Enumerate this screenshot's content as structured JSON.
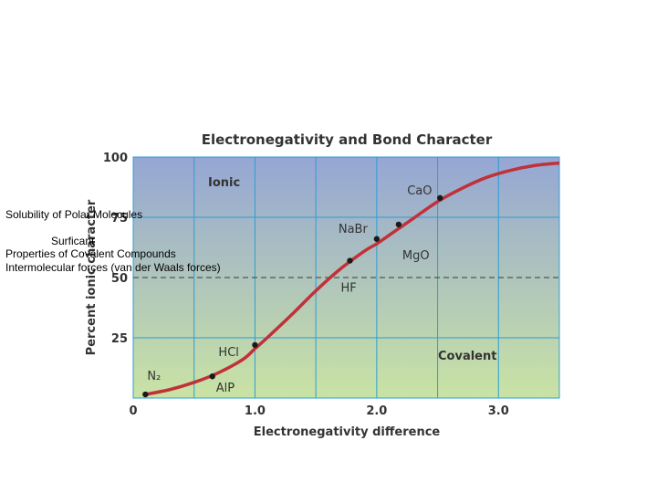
{
  "overlay": {
    "line1": "Solubility of Polar Molecules",
    "line2": "Surficant",
    "line3": "Properties of Covalent Compounds",
    "line4": "Intermolecular forces (van der Waals forces)"
  },
  "chart_data": {
    "type": "line",
    "title": "Electronegativity and Bond Character",
    "xlabel": "Electronegativity difference",
    "ylabel": "Percent ionic character",
    "xlim": [
      0,
      3.5
    ],
    "ylim": [
      0,
      100
    ],
    "x_ticks": [
      {
        "value": 0,
        "label": "0"
      },
      {
        "value": 1.0,
        "label": "1.0"
      },
      {
        "value": 2.0,
        "label": "2.0"
      },
      {
        "value": 3.0,
        "label": "3.0"
      }
    ],
    "y_ticks": [
      {
        "value": 25,
        "label": "25"
      },
      {
        "value": 50,
        "label": "50"
      },
      {
        "value": 75,
        "label": "75"
      },
      {
        "value": 100,
        "label": "100"
      }
    ],
    "region_labels": {
      "ionic": "Ionic",
      "covalent": "Covalent"
    },
    "threshold": 50,
    "grid": true,
    "curve": {
      "x": [
        0.1,
        0.3,
        0.5,
        0.7,
        0.9,
        1.0,
        1.1,
        1.3,
        1.5,
        1.7,
        1.9,
        2.0,
        2.1,
        2.3,
        2.5,
        2.7,
        2.9,
        3.1,
        3.3,
        3.5
      ],
      "y": [
        1.5,
        3.5,
        6.5,
        10.5,
        16.0,
        20.5,
        25.0,
        34.5,
        44.5,
        53.5,
        61.0,
        64.0,
        67.5,
        74.5,
        81.5,
        87.0,
        91.5,
        94.5,
        96.5,
        97.5
      ]
    },
    "points": [
      {
        "label": "N₂",
        "x": 0.1,
        "y": 1.5
      },
      {
        "label": "AlP",
        "x": 0.65,
        "y": 9
      },
      {
        "label": "HCl",
        "x": 1.0,
        "y": 22
      },
      {
        "label": "HF",
        "x": 1.78,
        "y": 57
      },
      {
        "label": "NaBr",
        "x": 2.0,
        "y": 66
      },
      {
        "label": "MgO",
        "x": 2.18,
        "y": 72
      },
      {
        "label": "CaO",
        "x": 2.52,
        "y": 83
      }
    ],
    "colors": {
      "curve": "#c0313a",
      "grid": "#2a9fd6",
      "bg_top": "#95a6d4",
      "bg_bottom": "#c9e3a4",
      "point": "#1a1a1a",
      "threshold": "#555555"
    }
  }
}
